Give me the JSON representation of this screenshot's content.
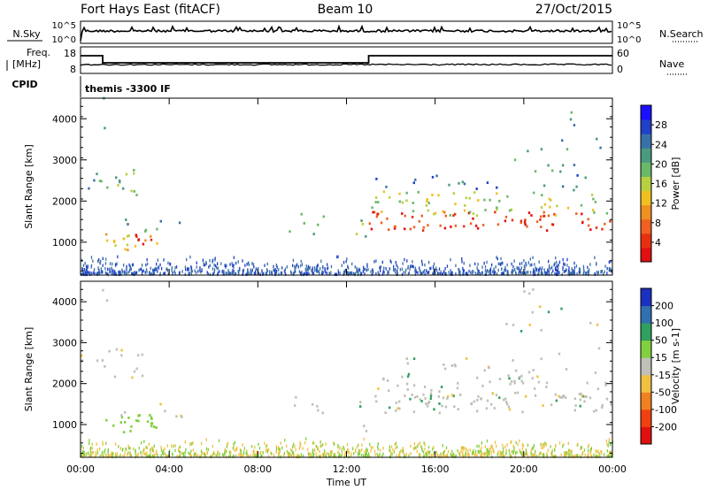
{
  "header": {
    "title": "Fort Hays East (fitACF)",
    "beam": "Beam 10",
    "date": "27/Oct/2015"
  },
  "top_panels": {
    "nsky_label": "N.Sky",
    "nsearch_label": "N.Search",
    "nsky_ticks": [
      "10^5",
      "10^0"
    ],
    "freq_label_1": "Freq.",
    "freq_label_2": "[MHz]",
    "freq_ticks": [
      "18",
      "8"
    ],
    "nave_label": "Nave",
    "nave_ticks": [
      "60",
      "0"
    ],
    "cpid_label": "CPID",
    "cpid_text": "themis -3300 IF"
  },
  "chart_data": [
    {
      "type": "heatmap",
      "name": "power",
      "ylabel": "Slant Range [km]",
      "y_ticks": [
        1000,
        2000,
        3000,
        4000
      ],
      "ylim": [
        200,
        4500
      ],
      "x_ticks": [
        "00:00",
        "04:00",
        "08:00",
        "12:00",
        "16:00",
        "20:00",
        "00:00"
      ],
      "colorbar_label": "Power [dB]",
      "colorbar_ticks": [
        "4",
        "8",
        "12",
        "16",
        "20",
        "24",
        "28"
      ],
      "colorbar_colors": [
        "#1a10ff",
        "#2040c8",
        "#3a70a8",
        "#4a9a80",
        "#6ab868",
        "#b8d040",
        "#f0c020",
        "#f09020",
        "#f06020",
        "#e83010",
        "#e01010"
      ]
    },
    {
      "type": "heatmap",
      "name": "velocity",
      "ylabel": "Slant Range [km]",
      "y_ticks": [
        1000,
        2000,
        3000,
        4000
      ],
      "ylim": [
        200,
        4500
      ],
      "x_ticks": [
        "00:00",
        "04:00",
        "08:00",
        "12:00",
        "16:00",
        "20:00",
        "00:00"
      ],
      "xlabel": "Time UT",
      "colorbar_label": "Velocity [m s-1]",
      "colorbar_ticks": [
        "200",
        "100",
        "50",
        "15",
        "-15",
        "-50",
        "-100",
        "-200"
      ],
      "colorbar_colors": [
        "#1a30c0",
        "#3070b0",
        "#30a060",
        "#80d040",
        "#c0c0b8",
        "#f0c040",
        "#f08020",
        "#f04010",
        "#e01010"
      ]
    }
  ]
}
